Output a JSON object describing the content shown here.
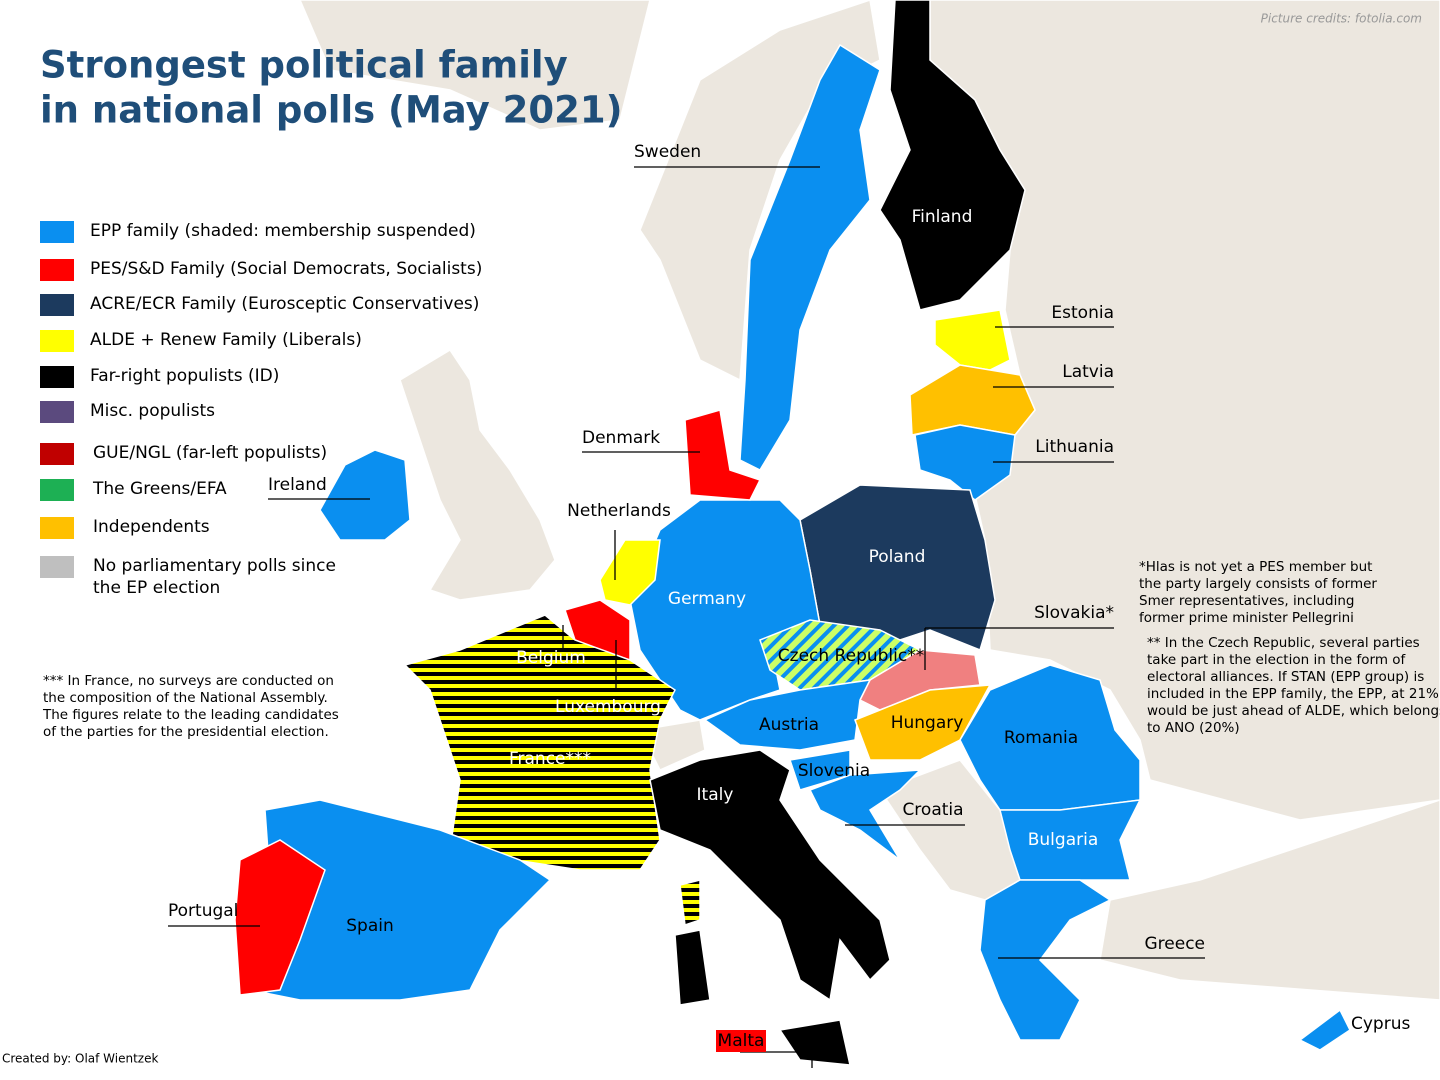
{
  "title": [
    "Strongest political family",
    "in national polls (May 2021)"
  ],
  "credit": "Picture credits: fotolia.com",
  "author": "Created by: Olaf Wientzek",
  "legend": [
    {
      "label": "EPP family (shaded: membership suspended)",
      "color": "#0a8ff0"
    },
    {
      "label": "PES/S&D Family (Social Democrats, Socialists)",
      "color": "#ff0000"
    },
    {
      "label": "ACRE/ECR Family (Eurosceptic Conservatives)",
      "color": "#1c3a5e"
    },
    {
      "label": "ALDE + Renew Family (Liberals)",
      "color": "#ffff00"
    },
    {
      "label": "Far-right populists (ID)",
      "color": "#000000"
    },
    {
      "label": "Misc. populists",
      "color": "#5b4a7e"
    },
    {
      "label": "GUE/NGL (far-left populists)",
      "color": "#c00000"
    },
    {
      "label": "The Greens/EFA",
      "color": "#1db054"
    },
    {
      "label": "Independents",
      "color": "#ffc000"
    },
    {
      "label": [
        "No parliamentary polls since",
        "the EP election"
      ],
      "color": "#bfbfbf"
    }
  ],
  "countries": [
    "Sweden",
    "Finland",
    "Estonia",
    "Latvia",
    "Lithuania",
    "Denmark",
    "Ireland",
    "Netherlands",
    "Poland",
    "Germany",
    "Belgium",
    "Luxembourg",
    "Czech Republic**",
    "Slovakia*",
    "Austria",
    "Hungary",
    "Romania",
    "Slovenia",
    "Croatia",
    "France***",
    "Italy",
    "Bulgaria",
    "Portugal",
    "Spain",
    "Greece",
    "Malta",
    "Cyprus"
  ],
  "notes": {
    "slovakia": [
      "*Hlas is not yet a PES member but",
      "the party largely consists of former",
      "Smer representatives, including",
      "former prime minister Pellegrini"
    ],
    "czech": [
      "** In the Czech Republic, several parties",
      "take part in the election in the form of",
      "electoral alliances. If STAN (EPP group) is",
      "included in the EPP family, the EPP, at 21%,",
      "would be just ahead of ALDE, which belongs",
      "to ANO (20%)"
    ],
    "france": [
      "*** In France, no surveys are conducted on",
      "the composition of the National Assembly.",
      "The figures relate to the leading candidates",
      "of the parties for the presidential election."
    ]
  }
}
